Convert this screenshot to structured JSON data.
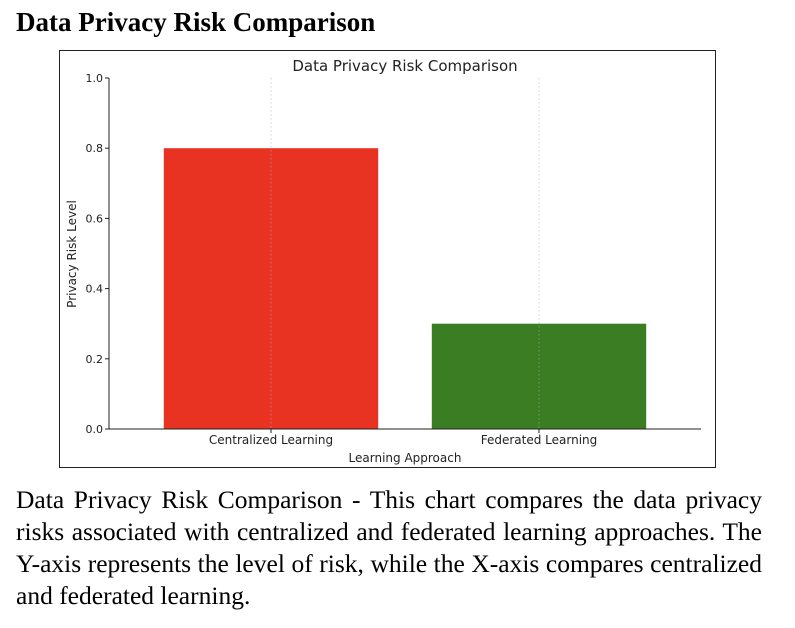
{
  "page": {
    "heading": "Data Privacy Risk Comparison",
    "caption": "Data Privacy Risk Comparison - This chart compares the data privacy risks associated with centralized and federated learning approaches. The Y-axis represents the level of risk, while the X-axis compares centralized and federated learning."
  },
  "chart_data": {
    "type": "bar",
    "title": "Data Privacy Risk Comparison",
    "xlabel": "Learning Approach",
    "ylabel": "Privacy Risk Level",
    "categories": [
      "Centralized Learning",
      "Federated Learning"
    ],
    "values": [
      0.8,
      0.3
    ],
    "colors": [
      "#e83323",
      "#3a7d22"
    ],
    "ylim": [
      0,
      1.0
    ],
    "yticks": [
      "0.0",
      "0.2",
      "0.4",
      "0.6",
      "0.8",
      "1.0"
    ],
    "grid": "x-only, dotted",
    "legend": "none"
  }
}
